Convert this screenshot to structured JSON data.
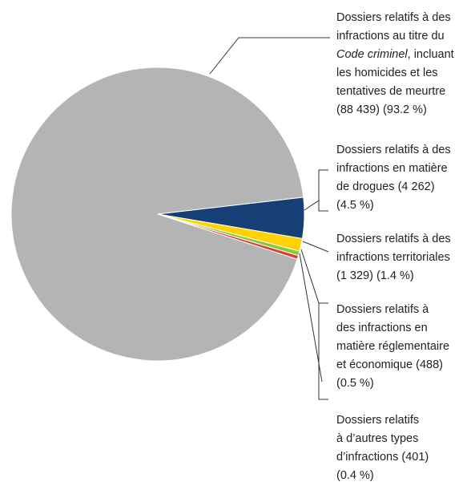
{
  "chart_data": {
    "type": "pie",
    "categories": [
      [
        "Dossiers relatifs à des",
        "infractions au titre du",
        [
          {
            "text": "Code criminel",
            "italic": true
          },
          {
            "text": ", incluant"
          }
        ],
        "les homicides et les",
        "tentatives de meurtre"
      ],
      [
        "Dossiers relatifs à des",
        "infractions en matière",
        "de drogues"
      ],
      [
        "Dossiers relatifs à des",
        "infractions territoriales"
      ],
      [
        "Dossiers relatifs à",
        "des infractions en",
        "matière réglementaire",
        "et économique"
      ],
      [
        "Dossiers relatifs",
        "à d’autres types",
        "d’infractions"
      ]
    ],
    "counts": [
      88439,
      4262,
      1329,
      488,
      401
    ],
    "count_labels": [
      "(88 439)",
      "(4 262)",
      "(1 329)",
      "(488)",
      "(401)"
    ],
    "values": [
      93.2,
      4.5,
      1.4,
      0.5,
      0.4
    ],
    "value_labels": [
      "(93.2 %)",
      "(4.5 %)",
      "(1.4 %)",
      "(0.5 %)",
      "(0.4 %)"
    ],
    "colors": [
      "#b4b4b4",
      "#173f75",
      "#ffd200",
      "#8cc43e",
      "#d7402e"
    ]
  }
}
